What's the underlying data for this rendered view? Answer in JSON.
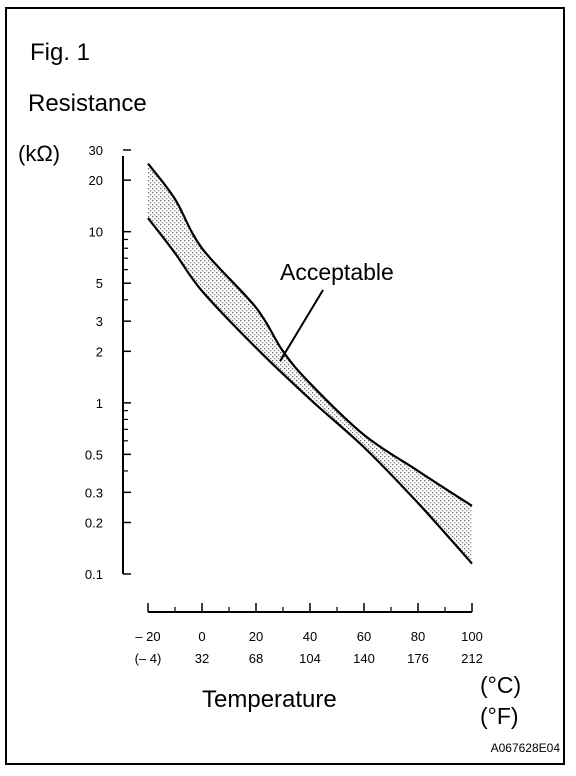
{
  "figure": {
    "label": "Fig. 1",
    "image_code": "A067628E04"
  },
  "chart_data": {
    "type": "area",
    "ylabel_line1": "Resistance",
    "ylabel_unit": "(kΩ)",
    "xlabel": "Temperature",
    "xunit_c": "(°C)",
    "xunit_f": "(°F)",
    "yscale": "log",
    "ylim": [
      0.1,
      30
    ],
    "xlim": [
      -20,
      100
    ],
    "y_ticks": [
      {
        "value": 30,
        "label": "30"
      },
      {
        "value": 20,
        "label": "20"
      },
      {
        "value": 10,
        "label": "10"
      },
      {
        "value": 5,
        "label": "5"
      },
      {
        "value": 3,
        "label": "3"
      },
      {
        "value": 2,
        "label": "2"
      },
      {
        "value": 1,
        "label": "1"
      },
      {
        "value": 0.5,
        "label": "0.5"
      },
      {
        "value": 0.3,
        "label": "0.3"
      },
      {
        "value": 0.2,
        "label": "0.2"
      },
      {
        "value": 0.1,
        "label": "0.1"
      }
    ],
    "y_minor_ticks": [
      9,
      8,
      7,
      6,
      4,
      0.9,
      0.8,
      0.7,
      0.6,
      0.4
    ],
    "x_ticks": [
      {
        "c": -20,
        "label_c": "– 20",
        "label_f": "(– 4)"
      },
      {
        "c": 0,
        "label_c": "0",
        "label_f": "32"
      },
      {
        "c": 20,
        "label_c": "20",
        "label_f": "68"
      },
      {
        "c": 40,
        "label_c": "40",
        "label_f": "104"
      },
      {
        "c": 60,
        "label_c": "60",
        "label_f": "140"
      },
      {
        "c": 80,
        "label_c": "80",
        "label_f": "176"
      },
      {
        "c": 100,
        "label_c": "100",
        "label_f": "212"
      }
    ],
    "x_minor_ticks": [
      -10,
      10,
      30,
      50,
      70,
      90
    ],
    "series": [
      {
        "role": "upper-limit",
        "points": [
          [
            -20,
            25
          ],
          [
            -10,
            15.5
          ],
          [
            0,
            8
          ],
          [
            20,
            3.6
          ],
          [
            30,
            2.0
          ],
          [
            40,
            1.3
          ],
          [
            60,
            0.65
          ],
          [
            80,
            0.4
          ],
          [
            100,
            0.25
          ]
        ]
      },
      {
        "role": "lower-limit",
        "points": [
          [
            -20,
            12
          ],
          [
            -10,
            7.5
          ],
          [
            0,
            4.5
          ],
          [
            20,
            2.1
          ],
          [
            40,
            1.05
          ],
          [
            60,
            0.55
          ],
          [
            80,
            0.26
          ],
          [
            100,
            0.115
          ]
        ]
      }
    ],
    "band_label": "Acceptable",
    "annotation_points_to": [
      30,
      2.0
    ]
  }
}
